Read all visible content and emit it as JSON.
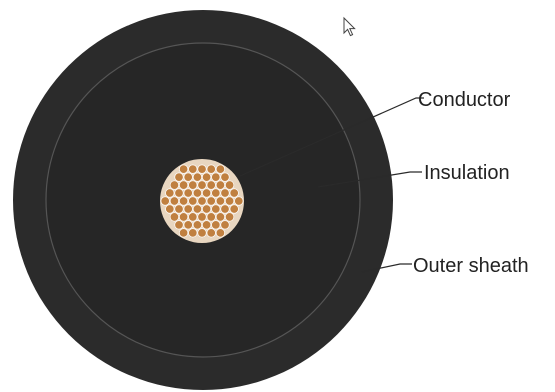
{
  "labels": {
    "conductor": "Conductor",
    "insulation": "Insulation",
    "outer_sheath": "Outer sheath"
  },
  "icons": {
    "cursor": "mouse-pointer-icon"
  },
  "colors": {
    "background": "#ffffff",
    "sheath": "#2b2b2b",
    "insulation": "#262626",
    "insulation_outline": "#555555",
    "strand_fill": "#c08040",
    "strand_edge": "#ffffff",
    "conductor_bed": "#e8d6c0",
    "leader_line": "#2a2a2a",
    "label_text": "#222222"
  }
}
